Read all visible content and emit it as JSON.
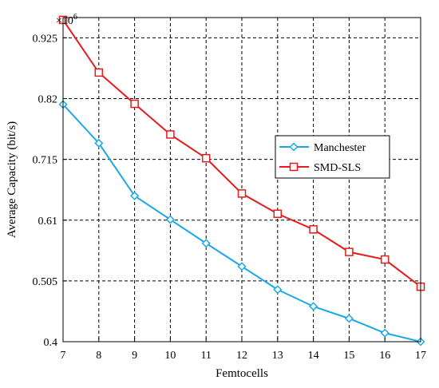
{
  "chart_data": {
    "type": "line",
    "xlabel": "Femtocells",
    "ylabel": "Average Capacity (bit/s)",
    "y_multiplier": "×10",
    "y_multiplier_exp": "6",
    "x": [
      7,
      8,
      9,
      10,
      11,
      12,
      13,
      14,
      15,
      16,
      17
    ],
    "xlim": [
      7,
      17
    ],
    "ylim": [
      0.4,
      0.96
    ],
    "yticks": [
      0.4,
      0.505,
      0.61,
      0.715,
      0.82,
      0.925
    ],
    "ytick_labels": [
      "0.4",
      "0.505",
      "0.61",
      "0.715",
      "0.82",
      "0.925"
    ],
    "xtick_labels": [
      "7",
      "8",
      "9",
      "10",
      "11",
      "12",
      "13",
      "14",
      "15",
      "16",
      "17"
    ],
    "grid": true,
    "grid_style": "dashed",
    "legend_position": "right",
    "series": [
      {
        "name": "Manchester",
        "color": "#1aa8e8",
        "marker": "diamond",
        "values": [
          0.81,
          0.743,
          0.652,
          0.611,
          0.57,
          0.53,
          0.49,
          0.461,
          0.44,
          0.415,
          0.4
        ]
      },
      {
        "name": "SMD-SLS",
        "color": "#e61a1a",
        "marker": "square",
        "values": [
          0.956,
          0.865,
          0.811,
          0.758,
          0.717,
          0.656,
          0.621,
          0.594,
          0.555,
          0.542,
          0.495
        ]
      }
    ]
  }
}
